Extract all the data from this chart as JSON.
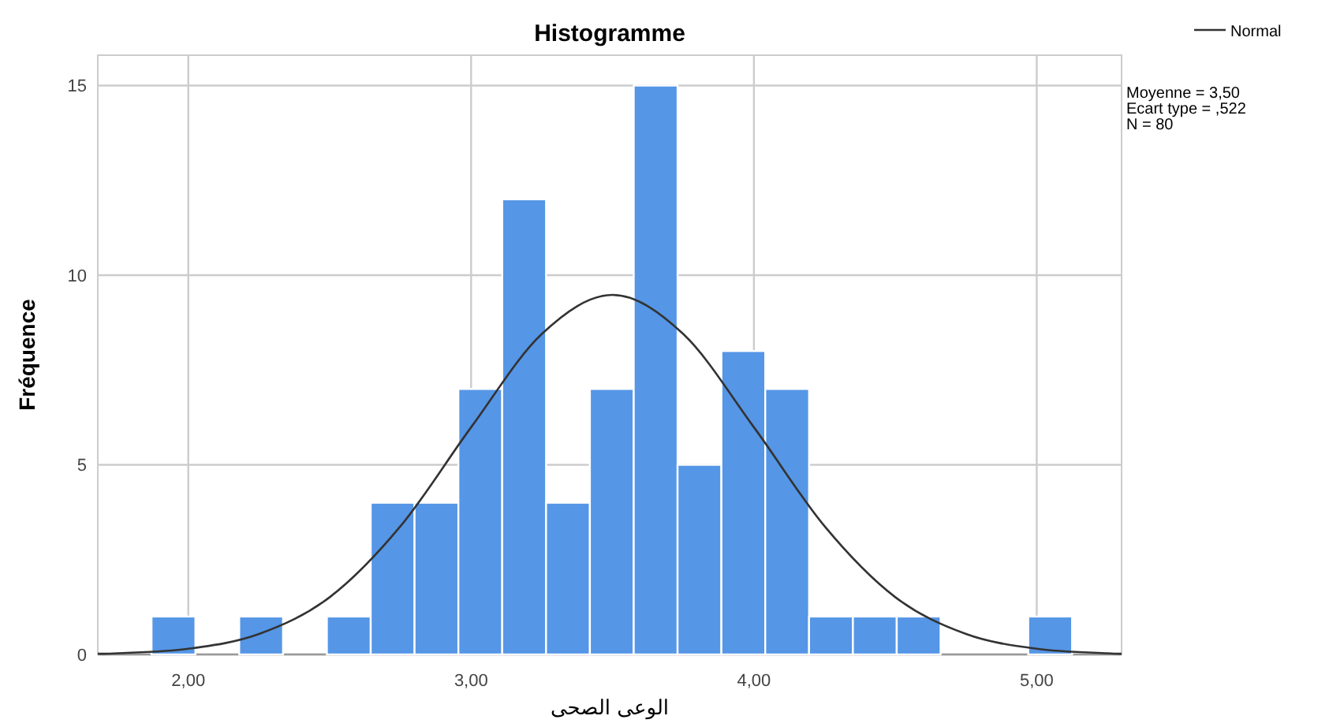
{
  "chart_data": {
    "type": "histogram",
    "title": "Histogramme",
    "xlabel": "الوعى الصحى",
    "ylabel": "Fréquence",
    "bins": [
      1.87,
      2.025,
      2.18,
      2.335,
      2.49,
      2.645,
      2.8,
      2.955,
      3.11,
      3.265,
      3.42,
      3.575,
      3.73,
      3.885,
      4.04,
      4.195,
      4.35,
      4.505,
      4.66,
      4.815,
      4.97,
      5.125
    ],
    "values": [
      1,
      0,
      1,
      0,
      1,
      4,
      4,
      7,
      12,
      4,
      7,
      15,
      5,
      8,
      7,
      1,
      1,
      1,
      0,
      0,
      1
    ],
    "color": "#5596e6",
    "series": [
      {
        "name": "Normal",
        "type": "line",
        "color": "#333333",
        "x": [
          1.68,
          1.75,
          2.0,
          2.25,
          2.5,
          2.75,
          3.0,
          3.25,
          3.5,
          3.75,
          4.0,
          4.25,
          4.5,
          4.75,
          5.0,
          5.25,
          5.3
        ],
        "values": [
          0.02,
          0.03,
          0.15,
          0.54,
          1.51,
          3.38,
          5.99,
          8.45,
          9.48,
          8.45,
          5.99,
          3.38,
          1.51,
          0.54,
          0.15,
          0.03,
          0.02
        ]
      }
    ],
    "xlim": [
      1.68,
      5.3
    ],
    "ylim": [
      0,
      15.8
    ],
    "xticks": [
      {
        "value": 2,
        "label": "2,00"
      },
      {
        "value": 3,
        "label": "3,00"
      },
      {
        "value": 4,
        "label": "4,00"
      },
      {
        "value": 5,
        "label": "5,00"
      }
    ],
    "yticks": [
      0,
      5,
      10,
      15
    ],
    "grid": true,
    "legend": "top right",
    "annotations": [
      "Moyenne = 3,50",
      "Ecart type = ,522",
      "N = 80"
    ]
  }
}
